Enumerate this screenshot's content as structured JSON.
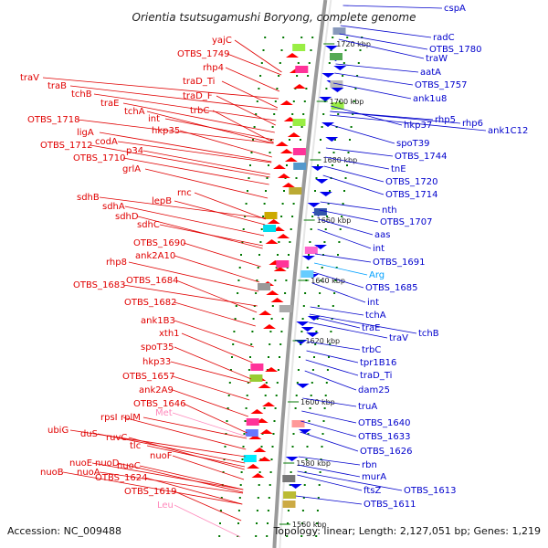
{
  "title": "Orientia tsutsugamushi Boryong, complete genome",
  "footer": {
    "accession": "Accession: NC_009488",
    "topology": "Topology: linear; Length: 2,127,051 bp; Genes: 1,219"
  },
  "colors": {
    "left_label": "#e00000",
    "right_label": "#0000cc",
    "trna": "#00a0ff",
    "trna_pink": "#ff88bb",
    "backbone": "#9a9a9a",
    "tick": "#007700"
  },
  "kbp_ticks": [
    "1720 kbp",
    "1700 kbp",
    "1680 kbp",
    "1660 kbp",
    "1640 kbp",
    "1620 kbp",
    "1600 kbp",
    "1580 kbp",
    "1560 kbp"
  ],
  "left_genes": [
    "traV",
    "traB",
    "tchB",
    "traE",
    "tchA",
    "int",
    "OTBS_1718",
    "hkp35",
    "ligA",
    "OTBS_1712",
    "codA",
    "p34",
    "OTBS_1710",
    "grlA",
    "yajC",
    "OTBS_1749",
    "rhp4",
    "traD_Ti",
    "traD_F",
    "trbC",
    "sdhB",
    "lepB",
    "rnc",
    "sdhA",
    "sdhD",
    "sdhC",
    "OTBS_1690",
    "ank2A10",
    "rhp8",
    "OTBS_1684",
    "OTBS_1683",
    "OTBS_1682",
    "ank1B3",
    "xth1",
    "spoT35",
    "hkp33",
    "OTBS_1657",
    "ank2A9",
    "OTBS_1646",
    "rpsI",
    "rplM",
    "Met",
    "ubiG",
    "duS",
    "ruvC",
    "tlc",
    "nuoF",
    "nuoE",
    "nuoD",
    "nuoB",
    "nuoA",
    "nuoC",
    "OTBS_1624",
    "OTBS_1619",
    "Leu"
  ],
  "right_genes": [
    "cspA",
    "radC",
    "OTBS_1780",
    "traW",
    "aatA",
    "OTBS_1757",
    "ank1u8",
    "hkp37",
    "rhp5",
    "rhp6",
    "ank1C12",
    "spoT39",
    "OTBS_1744",
    "tnE",
    "OTBS_1720",
    "OTBS_1714",
    "nth",
    "OTBS_1707",
    "aas",
    "int",
    "OTBS_1691",
    "Arg",
    "OTBS_1685",
    "int",
    "tchA",
    "traE",
    "traV",
    "tchB",
    "trbC",
    "tpr1B16",
    "traD_Ti",
    "dam25",
    "truA",
    "OTBS_1640",
    "OTBS_1633",
    "OTBS_1626",
    "rbn",
    "murA",
    "ftsZ",
    "OTBS_1613",
    "OTBS_1611"
  ]
}
